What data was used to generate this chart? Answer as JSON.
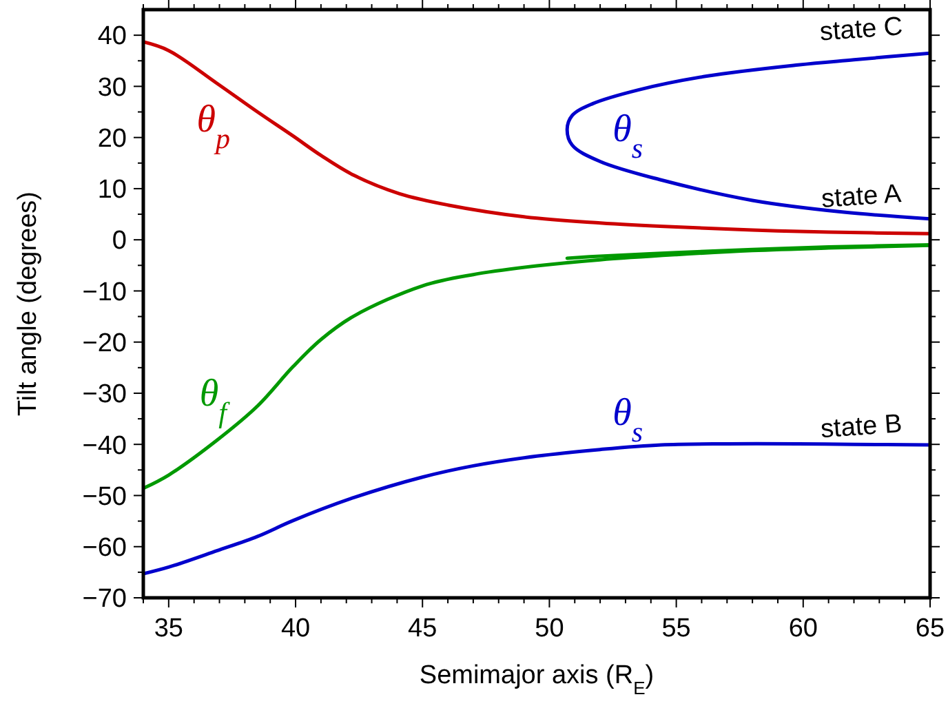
{
  "chart_data": {
    "type": "line",
    "xlabel": "Semimajor axis (R$_{E}$)",
    "ylabel": "Tilt angle (degrees)",
    "xlim": [
      34,
      65
    ],
    "ylim": [
      -70,
      45
    ],
    "xticks": [
      35,
      40,
      45,
      50,
      55,
      60,
      65,
      {
        "value": 34,
        "label": null
      },
      {
        "value": 36,
        "label": null
      },
      {
        "value": 37,
        "label": null
      },
      {
        "value": 38,
        "label": null
      },
      {
        "value": 39,
        "label": null
      },
      {
        "value": 41,
        "label": null
      },
      {
        "value": 42,
        "label": null
      },
      {
        "value": 43,
        "label": null
      },
      {
        "value": 44,
        "label": null
      },
      {
        "value": 46,
        "label": null
      },
      {
        "value": 47,
        "label": null
      },
      {
        "value": 48,
        "label": null
      },
      {
        "value": 49,
        "label": null
      },
      {
        "value": 51,
        "label": null
      },
      {
        "value": 52,
        "label": null
      },
      {
        "value": 53,
        "label": null
      },
      {
        "value": 54,
        "label": null
      },
      {
        "value": 56,
        "label": null
      },
      {
        "value": 57,
        "label": null
      },
      {
        "value": 58,
        "label": null
      },
      {
        "value": 59,
        "label": null
      },
      {
        "value": 61,
        "label": null
      },
      {
        "value": 62,
        "label": null
      },
      {
        "value": 63,
        "label": null
      },
      {
        "value": 64,
        "label": null
      }
    ],
    "yticks": [
      -70,
      -60,
      -50,
      -40,
      -30,
      -20,
      -10,
      0,
      10,
      20,
      30,
      40,
      {
        "value": -65,
        "label": null
      },
      {
        "value": -55,
        "label": null
      },
      {
        "value": -45,
        "label": null
      },
      {
        "value": -35,
        "label": null
      },
      {
        "value": -25,
        "label": null
      },
      {
        "value": -15,
        "label": null
      },
      {
        "value": -5,
        "label": null
      },
      {
        "value": 5,
        "label": null
      },
      {
        "value": 15,
        "label": null
      },
      {
        "value": 25,
        "label": null
      },
      {
        "value": 35,
        "label": null
      }
    ],
    "grid": false,
    "marker": "none",
    "line_style": "solid",
    "series": [
      {
        "name": "θ$_{p}$",
        "color": "#cc0000",
        "x": [
          34,
          35,
          36.9,
          38.5,
          39.9,
          41,
          42.3,
          44.1,
          46,
          49,
          52,
          55,
          58,
          61,
          65
        ],
        "values": [
          38.7,
          37,
          30.6,
          25,
          20.3,
          16.5,
          12.6,
          9,
          6.8,
          4.5,
          3.3,
          2.5,
          1.9,
          1.5,
          1.2
        ]
      },
      {
        "name": "θ$_{f}$",
        "color": "#009900",
        "x": [
          34,
          35,
          36.9,
          38.5,
          39.9,
          41,
          42.3,
          45,
          47,
          49.5,
          52,
          55,
          58,
          61,
          65
        ],
        "values": [
          -48.6,
          -46,
          -39.2,
          -32.5,
          -24.8,
          -19.5,
          -14.9,
          -9,
          -6.8,
          -5.1,
          -3.9,
          -2.9,
          -2.1,
          -1.6,
          -1.1
        ]
      },
      {
        "color": "#009900",
        "x": [
          50.7,
          52,
          55,
          58,
          61,
          65
        ],
        "values": [
          -3.6,
          -3.2,
          -2.5,
          -1.9,
          -1.4,
          -1
        ]
      },
      {
        "name": "θ$_{s}$",
        "color": "#0000cc",
        "x": [
          34,
          35,
          36.9,
          38.5,
          39.9,
          42.3,
          45,
          47,
          49.5,
          52,
          54.4,
          57,
          59.8,
          62,
          65
        ],
        "values": [
          -65.3,
          -64,
          -60.8,
          -58,
          -54.9,
          -50.4,
          -46.4,
          -44.2,
          -42.3,
          -41,
          -40.1,
          -39.9,
          -39.9,
          -40,
          -40.1
        ]
      },
      {
        "name": "θ$_{s}$",
        "color": "#0000cc",
        "x": [
          65,
          62,
          59.8,
          56.2,
          53.5,
          51.7,
          50.9,
          50.7,
          50.9,
          52,
          54.4,
          58,
          61.6,
          65
        ],
        "values": [
          36.5,
          35.2,
          34.2,
          32,
          29.3,
          26.6,
          24.3,
          21.6,
          18.5,
          15.3,
          11.7,
          7.7,
          5.4,
          4.1
        ]
      }
    ],
    "annotations": [
      "state C",
      "state A",
      "state B"
    ]
  }
}
